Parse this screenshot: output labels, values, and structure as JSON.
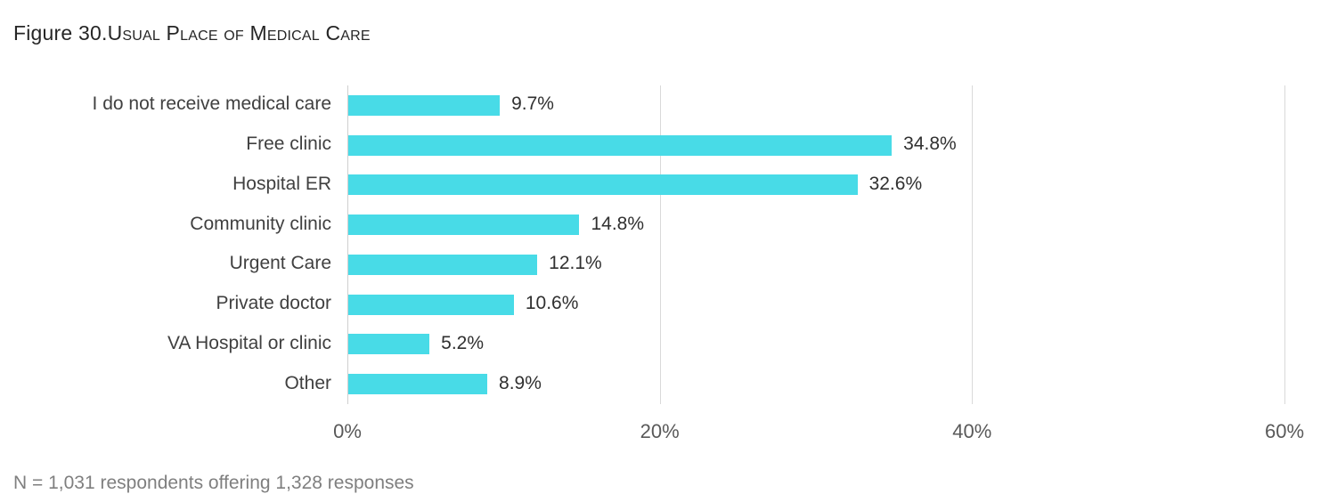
{
  "title": {
    "prefix": "Figure 30.",
    "caps": "Usual Place of Medical Care"
  },
  "footnote": "N = 1,031 respondents offering 1,328 responses",
  "colors": {
    "bar": "#48dbe7",
    "gridline": "#d9d9d9",
    "category_text": "#404040",
    "value_text": "#303030",
    "tick_text": "#595959",
    "footnote_text": "#7f7f7f"
  },
  "chart_data": {
    "type": "bar",
    "orientation": "horizontal",
    "title": "Figure 30. Usual Place of Medical Care",
    "categories": [
      "I do not receive medical care",
      "Free clinic",
      "Hospital ER",
      "Community clinic",
      "Urgent Care",
      "Private doctor",
      "VA Hospital or clinic",
      "Other"
    ],
    "values": [
      9.7,
      34.8,
      32.6,
      14.8,
      12.1,
      10.6,
      5.2,
      8.9
    ],
    "value_labels": [
      "9.7%",
      "34.8%",
      "32.6%",
      "14.8%",
      "12.1%",
      "10.6%",
      "5.2%",
      "8.9%"
    ],
    "xlabel": "",
    "ylabel": "",
    "xlim": [
      0,
      60
    ],
    "x_tick_values": [
      0,
      20,
      40,
      60
    ],
    "x_tick_labels": [
      "0%",
      "20%",
      "40%",
      "60%"
    ],
    "grid": true,
    "legend_position": "none"
  }
}
